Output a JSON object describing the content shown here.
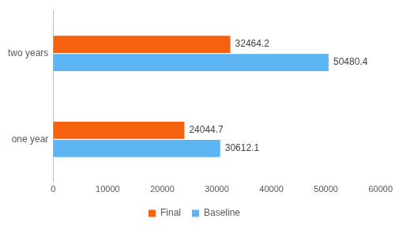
{
  "chart_data": {
    "type": "bar",
    "orientation": "horizontal",
    "categories": [
      "two years",
      "one year"
    ],
    "series": [
      {
        "name": "Final",
        "color": "#f5620f",
        "values": [
          32464.2,
          24044.7
        ]
      },
      {
        "name": "Baseline",
        "color": "#5db6f3",
        "values": [
          50480.4,
          30612.1
        ]
      }
    ],
    "xlim": [
      0,
      60000
    ],
    "xticks": [
      0,
      10000,
      20000,
      30000,
      40000,
      50000,
      60000
    ],
    "grid": false,
    "legend": "bottom",
    "data_labels": true
  }
}
